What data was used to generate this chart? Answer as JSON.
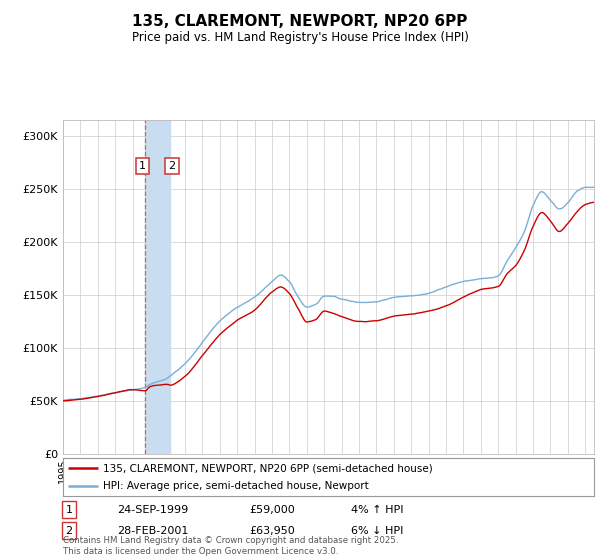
{
  "title": "135, CLAREMONT, NEWPORT, NP20 6PP",
  "subtitle": "Price paid vs. HM Land Registry's House Price Index (HPI)",
  "ylabel_ticks": [
    "£0",
    "£50K",
    "£100K",
    "£150K",
    "£200K",
    "£250K",
    "£300K"
  ],
  "ytick_values": [
    0,
    50000,
    100000,
    150000,
    200000,
    250000,
    300000
  ],
  "ylim": [
    0,
    315000
  ],
  "xlim_start": 1995.0,
  "xlim_end": 2025.5,
  "transaction1_date": "24-SEP-1999",
  "transaction1_price": "£59,000",
  "transaction1_hpi": "4% ↑ HPI",
  "transaction1_year": 1999.73,
  "transaction2_date": "28-FEB-2001",
  "transaction2_price": "£63,950",
  "transaction2_hpi": "6% ↓ HPI",
  "transaction2_year": 2001.16,
  "legend_label1": "135, CLAREMONT, NEWPORT, NP20 6PP (semi-detached house)",
  "legend_label2": "HPI: Average price, semi-detached house, Newport",
  "footer": "Contains HM Land Registry data © Crown copyright and database right 2025.\nThis data is licensed under the Open Government Licence v3.0.",
  "line1_color": "#cc0000",
  "line2_color": "#7aaed6",
  "vline_color": "#dd4444",
  "span_color": "#c8ddef",
  "background_color": "#ffffff",
  "grid_color": "#cccccc"
}
